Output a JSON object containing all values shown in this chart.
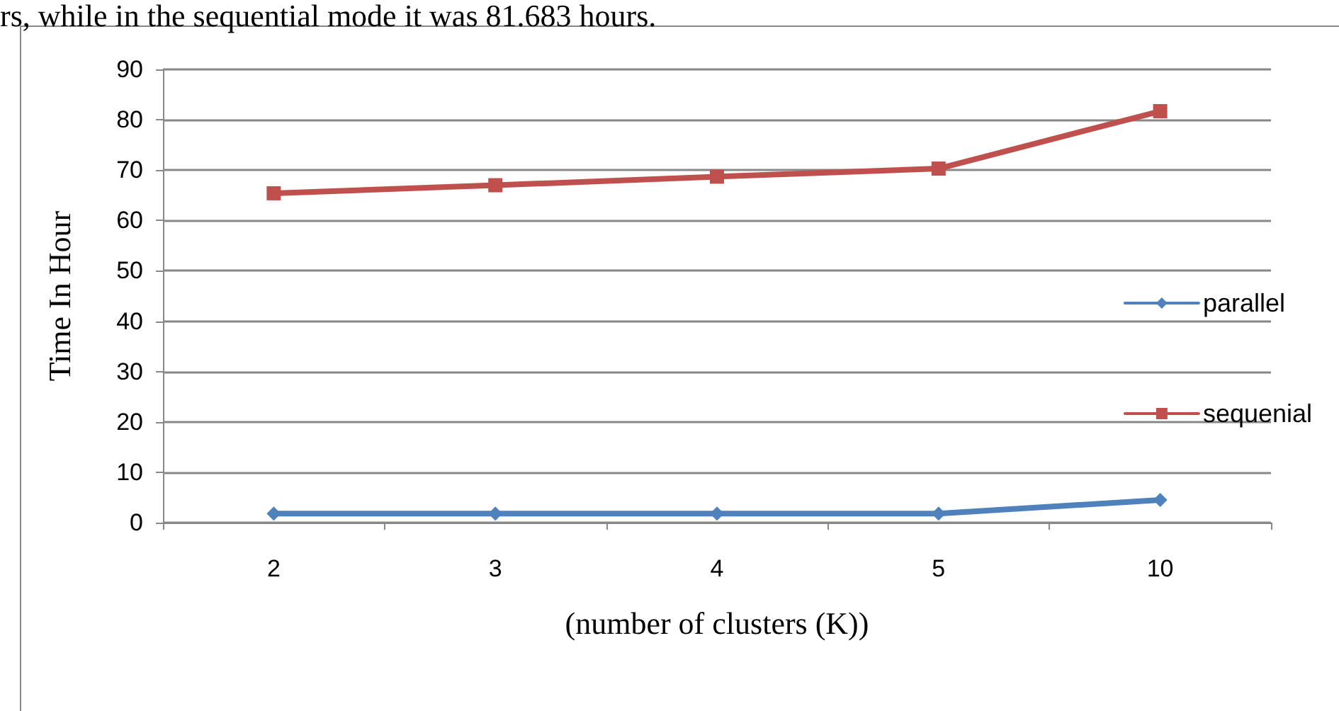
{
  "chart_data": {
    "type": "line",
    "ylabel": "Time In Hour",
    "xlabel": "(number of clusters (K))",
    "annotations": [
      "rs, while in the sequential mode it was 81.683 hours."
    ],
    "categories": [
      "2",
      "3",
      "4",
      "5",
      "10"
    ],
    "series": [
      {
        "name": "parallel",
        "color": "#4f81bd",
        "marker": "diamond",
        "values": [
          1.8,
          1.8,
          1.8,
          1.8,
          4.5
        ]
      },
      {
        "name": "sequenial",
        "color": "#c0504d",
        "marker": "square",
        "values": [
          65.4,
          67.0,
          68.7,
          70.3,
          81.7
        ]
      }
    ],
    "ylim": [
      0,
      90
    ],
    "yticks": [
      0,
      10,
      20,
      30,
      40,
      50,
      60,
      70,
      80,
      90
    ],
    "grid": "y",
    "legend": "right",
    "line_style": "solid"
  }
}
